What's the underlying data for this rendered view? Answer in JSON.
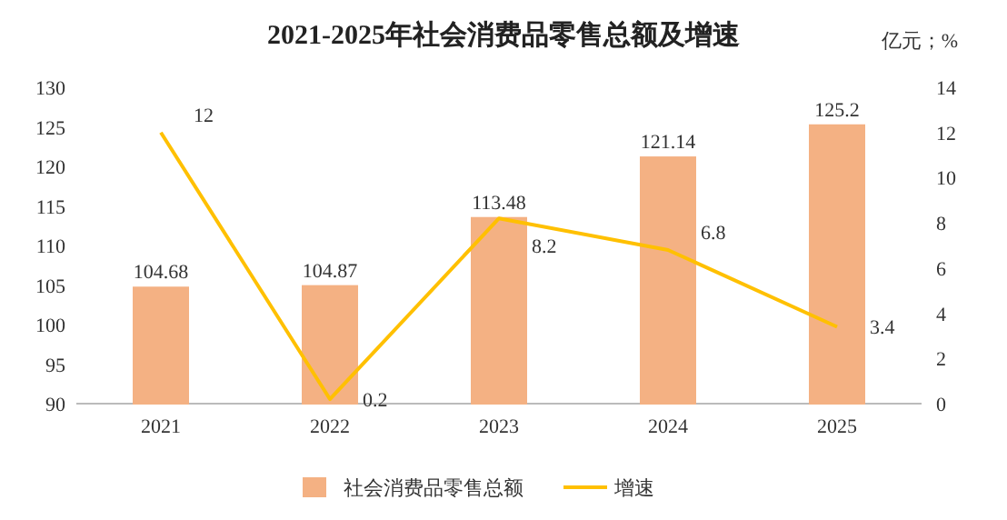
{
  "chart_data": {
    "type": "bar",
    "title": "2021-2025年社会消费品零售总额及增速",
    "annotations": [
      "亿元；%"
    ],
    "categories": [
      "2021",
      "2022",
      "2023",
      "2024",
      "2025"
    ],
    "series": [
      {
        "name": "社会消费品零售总额",
        "color": "#f4b183",
        "values": [
          104.68,
          104.87,
          113.48,
          121.14,
          125.2
        ]
      },
      {
        "name": "增速",
        "type": "line",
        "axis": "y2",
        "color": "#ffc000",
        "values": [
          12,
          0.2,
          8.2,
          6.8,
          3.4
        ]
      }
    ],
    "ylim": [
      90,
      130
    ],
    "yticks": [
      90,
      95,
      100,
      105,
      110,
      115,
      120,
      125,
      130
    ],
    "y2lim": [
      0,
      14
    ],
    "y2ticks": [
      0,
      2,
      4,
      6,
      8,
      10,
      12,
      14
    ],
    "data_labels": true,
    "legend": "bottom"
  }
}
